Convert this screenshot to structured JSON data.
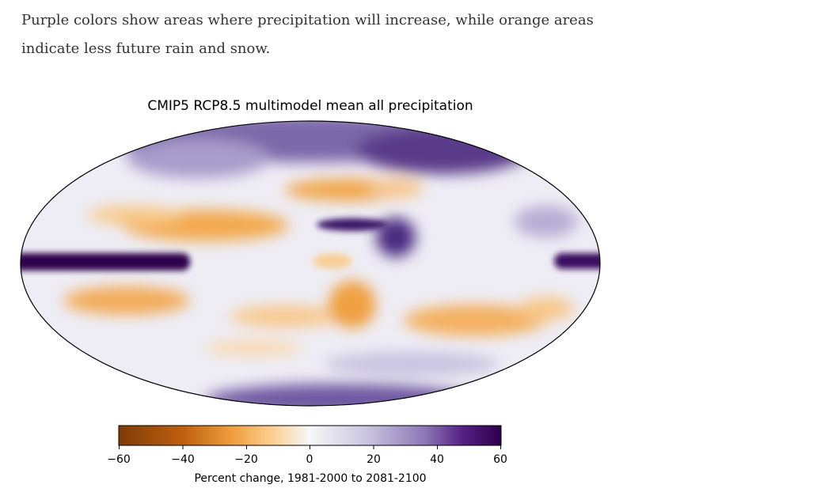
{
  "article": {
    "paragraph": "Purple colors show areas where precipitation will increase, while orange areas indicate less future rain and snow."
  },
  "figure": {
    "title": "CMIP5 RCP8.5 multimodel mean all precipitation",
    "colorbar": {
      "ticks": [
        "−60",
        "−40",
        "−20",
        "0",
        "20",
        "40",
        "60"
      ],
      "tick_values": [
        -60,
        -40,
        -20,
        0,
        20,
        40,
        60
      ],
      "label": "Percent change, 1981-2000 to 2081-2100",
      "colormap_stops": [
        "#7f3b08",
        "#e08214",
        "#fdb863",
        "#f7f7f7",
        "#b2abd2",
        "#542788",
        "#2d004b"
      ]
    }
  },
  "chart_data": {
    "type": "heatmap",
    "title": "CMIP5 RCP8.5 multimodel mean all precipitation",
    "projection": "mollweide",
    "colorbar_label": "Percent change, 1981-2000 to 2081-2100",
    "vrange": [
      -60,
      60
    ],
    "ticks": [
      -60,
      -40,
      -20,
      0,
      20,
      40,
      60
    ]
  }
}
